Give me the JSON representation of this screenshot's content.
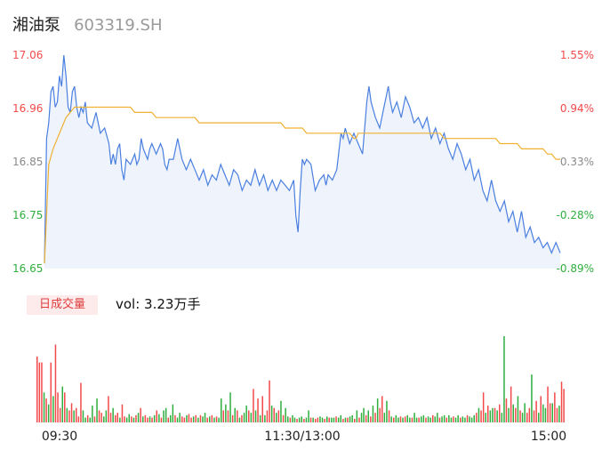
{
  "header": {
    "name": "湘油泵",
    "code": "603319.SH"
  },
  "volume": {
    "badge": "日成交量",
    "text": "vol: 3.23万手"
  },
  "colors": {
    "up": "#f24a4a",
    "down": "#2fae3e",
    "price": "#4a7fe0",
    "avg": "#f0b030",
    "fill": "#eef3fc",
    "neutral": "#8a8a8a"
  },
  "chart_data": {
    "type": "line",
    "y_price_ticks": [
      "17.06",
      "16.96",
      "16.85",
      "16.75",
      "16.65"
    ],
    "y_pct_ticks": [
      "1.55%",
      "0.94%",
      "0.33%",
      "-0.28%",
      "-0.89%"
    ],
    "ylim": [
      16.65,
      17.06
    ],
    "x_tick_labels": [
      "09:30",
      "11:30/13:00",
      "15:00"
    ],
    "x_range": [
      0,
      240
    ],
    "price": [
      [
        0,
        16.66
      ],
      [
        1,
        16.9
      ],
      [
        2,
        16.93
      ],
      [
        3,
        16.99
      ],
      [
        4,
        17.0
      ],
      [
        5,
        16.96
      ],
      [
        6,
        16.97
      ],
      [
        7,
        17.02
      ],
      [
        8,
        17.0
      ],
      [
        9,
        17.06
      ],
      [
        10,
        17.02
      ],
      [
        11,
        16.96
      ],
      [
        12,
        16.95
      ],
      [
        13,
        16.99
      ],
      [
        14,
        17.0
      ],
      [
        15,
        16.96
      ],
      [
        16,
        16.94
      ],
      [
        17,
        16.96
      ],
      [
        18,
        16.95
      ],
      [
        19,
        16.97
      ],
      [
        20,
        16.93
      ],
      [
        22,
        16.92
      ],
      [
        24,
        16.95
      ],
      [
        25,
        16.93
      ],
      [
        26,
        16.91
      ],
      [
        28,
        16.92
      ],
      [
        30,
        16.89
      ],
      [
        31,
        16.85
      ],
      [
        32,
        16.87
      ],
      [
        33,
        16.85
      ],
      [
        34,
        16.88
      ],
      [
        35,
        16.89
      ],
      [
        36,
        16.84
      ],
      [
        37,
        16.82
      ],
      [
        38,
        16.86
      ],
      [
        40,
        16.85
      ],
      [
        42,
        16.87
      ],
      [
        43,
        16.85
      ],
      [
        44,
        16.86
      ],
      [
        45,
        16.9
      ],
      [
        46,
        16.88
      ],
      [
        48,
        16.86
      ],
      [
        49,
        16.88
      ],
      [
        50,
        16.89
      ],
      [
        52,
        16.87
      ],
      [
        54,
        16.89
      ],
      [
        55,
        16.88
      ],
      [
        56,
        16.85
      ],
      [
        57,
        16.84
      ],
      [
        58,
        16.86
      ],
      [
        60,
        16.86
      ],
      [
        62,
        16.9
      ],
      [
        64,
        16.86
      ],
      [
        66,
        16.84
      ],
      [
        68,
        16.86
      ],
      [
        70,
        16.84
      ],
      [
        72,
        16.82
      ],
      [
        74,
        16.84
      ],
      [
        76,
        16.81
      ],
      [
        78,
        16.83
      ],
      [
        80,
        16.82
      ],
      [
        82,
        16.85
      ],
      [
        84,
        16.83
      ],
      [
        86,
        16.81
      ],
      [
        88,
        16.84
      ],
      [
        90,
        16.83
      ],
      [
        92,
        16.8
      ],
      [
        94,
        16.82
      ],
      [
        96,
        16.81
      ],
      [
        98,
        16.84
      ],
      [
        100,
        16.81
      ],
      [
        102,
        16.83
      ],
      [
        104,
        16.8
      ],
      [
        106,
        16.82
      ],
      [
        108,
        16.8
      ],
      [
        110,
        16.82
      ],
      [
        112,
        16.81
      ],
      [
        114,
        16.8
      ],
      [
        116,
        16.82
      ],
      [
        117,
        16.75
      ],
      [
        118,
        16.72
      ],
      [
        119,
        16.8
      ],
      [
        120,
        16.86
      ],
      [
        121,
        16.85
      ],
      [
        122,
        16.86
      ],
      [
        124,
        16.85
      ],
      [
        126,
        16.8
      ],
      [
        128,
        16.82
      ],
      [
        130,
        16.83
      ],
      [
        131,
        16.81
      ],
      [
        132,
        16.83
      ],
      [
        134,
        16.82
      ],
      [
        136,
        16.84
      ],
      [
        138,
        16.91
      ],
      [
        139,
        16.9
      ],
      [
        140,
        16.92
      ],
      [
        142,
        16.89
      ],
      [
        144,
        16.91
      ],
      [
        146,
        16.89
      ],
      [
        148,
        16.87
      ],
      [
        150,
        16.97
      ],
      [
        151,
        17.0
      ],
      [
        152,
        16.97
      ],
      [
        154,
        16.94
      ],
      [
        156,
        16.92
      ],
      [
        158,
        16.96
      ],
      [
        160,
        17.0
      ],
      [
        161,
        16.97
      ],
      [
        162,
        16.95
      ],
      [
        164,
        16.97
      ],
      [
        166,
        16.94
      ],
      [
        168,
        16.98
      ],
      [
        170,
        16.96
      ],
      [
        172,
        16.93
      ],
      [
        174,
        16.94
      ],
      [
        176,
        16.92
      ],
      [
        178,
        16.94
      ],
      [
        180,
        16.9
      ],
      [
        182,
        16.92
      ],
      [
        184,
        16.89
      ],
      [
        186,
        16.91
      ],
      [
        188,
        16.88
      ],
      [
        190,
        16.86
      ],
      [
        192,
        16.89
      ],
      [
        194,
        16.87
      ],
      [
        196,
        16.84
      ],
      [
        198,
        16.86
      ],
      [
        200,
        16.82
      ],
      [
        202,
        16.84
      ],
      [
        204,
        16.8
      ],
      [
        206,
        16.78
      ],
      [
        208,
        16.82
      ],
      [
        210,
        16.78
      ],
      [
        212,
        16.76
      ],
      [
        214,
        16.78
      ],
      [
        216,
        16.74
      ],
      [
        218,
        16.76
      ],
      [
        220,
        16.72
      ],
      [
        222,
        16.76
      ],
      [
        224,
        16.71
      ],
      [
        226,
        16.73
      ],
      [
        228,
        16.7
      ],
      [
        230,
        16.71
      ],
      [
        232,
        16.69
      ],
      [
        234,
        16.7
      ],
      [
        236,
        16.68
      ],
      [
        238,
        16.7
      ],
      [
        240,
        16.68
      ]
    ],
    "avg": [
      [
        0,
        16.66
      ],
      [
        2,
        16.85
      ],
      [
        4,
        16.88
      ],
      [
        6,
        16.9
      ],
      [
        8,
        16.92
      ],
      [
        10,
        16.94
      ],
      [
        12,
        16.95
      ],
      [
        14,
        16.96
      ],
      [
        40,
        16.96
      ],
      [
        42,
        16.95
      ],
      [
        50,
        16.95
      ],
      [
        52,
        16.94
      ],
      [
        70,
        16.94
      ],
      [
        72,
        16.93
      ],
      [
        110,
        16.93
      ],
      [
        112,
        16.92
      ],
      [
        120,
        16.92
      ],
      [
        122,
        16.91
      ],
      [
        142,
        16.91
      ],
      [
        144,
        16.9
      ],
      [
        145,
        16.9
      ],
      [
        146,
        16.91
      ],
      [
        184,
        16.91
      ],
      [
        186,
        16.9
      ],
      [
        210,
        16.9
      ],
      [
        212,
        16.89
      ],
      [
        220,
        16.89
      ],
      [
        222,
        16.88
      ],
      [
        232,
        16.88
      ],
      [
        234,
        16.87
      ],
      [
        236,
        16.87
      ],
      [
        238,
        16.86
      ],
      [
        240,
        16.86
      ]
    ],
    "volume_bars": [
      [
        0.55,
        "up"
      ],
      [
        0.5,
        "up"
      ],
      [
        0.5,
        "up"
      ],
      [
        0.25,
        "down"
      ],
      [
        0.2,
        "up"
      ],
      [
        0.15,
        "down"
      ],
      [
        0.5,
        "up"
      ],
      [
        0.22,
        "down"
      ],
      [
        0.65,
        "up"
      ],
      [
        0.25,
        "up"
      ],
      [
        0.12,
        "up"
      ],
      [
        0.3,
        "down"
      ],
      [
        0.25,
        "up"
      ],
      [
        0.12,
        "down"
      ],
      [
        0.1,
        "up"
      ],
      [
        0.16,
        "up"
      ],
      [
        0.1,
        "down"
      ],
      [
        0.12,
        "up"
      ],
      [
        0.05,
        "up"
      ],
      [
        0.33,
        "up"
      ],
      [
        0.1,
        "down"
      ],
      [
        0.04,
        "down"
      ],
      [
        0.06,
        "up"
      ],
      [
        0.04,
        "down"
      ],
      [
        0.14,
        "down"
      ],
      [
        0.05,
        "up"
      ],
      [
        0.2,
        "down"
      ],
      [
        0.1,
        "up"
      ],
      [
        0.08,
        "up"
      ],
      [
        0.05,
        "down"
      ],
      [
        0.1,
        "down"
      ],
      [
        0.22,
        "up"
      ],
      [
        0.08,
        "up"
      ],
      [
        0.12,
        "down"
      ],
      [
        0.06,
        "up"
      ],
      [
        0.08,
        "up"
      ],
      [
        0.04,
        "down"
      ],
      [
        0.15,
        "up"
      ],
      [
        0.05,
        "up"
      ],
      [
        0.04,
        "down"
      ],
      [
        0.07,
        "down"
      ],
      [
        0.05,
        "up"
      ],
      [
        0.04,
        "down"
      ],
      [
        0.06,
        "up"
      ],
      [
        0.08,
        "down"
      ],
      [
        0.12,
        "up"
      ],
      [
        0.05,
        "down"
      ],
      [
        0.06,
        "up"
      ],
      [
        0.04,
        "up"
      ],
      [
        0.05,
        "down"
      ],
      [
        0.04,
        "up"
      ],
      [
        0.06,
        "down"
      ],
      [
        0.1,
        "up"
      ],
      [
        0.07,
        "down"
      ],
      [
        0.04,
        "up"
      ],
      [
        0.1,
        "down"
      ],
      [
        0.12,
        "down"
      ],
      [
        0.04,
        "up"
      ],
      [
        0.06,
        "down"
      ],
      [
        0.15,
        "down"
      ],
      [
        0.06,
        "up"
      ],
      [
        0.04,
        "down"
      ],
      [
        0.08,
        "down"
      ],
      [
        0.05,
        "up"
      ],
      [
        0.04,
        "up"
      ],
      [
        0.06,
        "down"
      ],
      [
        0.07,
        "up"
      ],
      [
        0.04,
        "up"
      ],
      [
        0.05,
        "down"
      ],
      [
        0.06,
        "up"
      ],
      [
        0.04,
        "down"
      ],
      [
        0.06,
        "up"
      ],
      [
        0.05,
        "down"
      ],
      [
        0.08,
        "down"
      ],
      [
        0.04,
        "up"
      ],
      [
        0.05,
        "down"
      ],
      [
        0.06,
        "up"
      ],
      [
        0.04,
        "down"
      ],
      [
        0.05,
        "up"
      ],
      [
        0.04,
        "down"
      ],
      [
        0.2,
        "down"
      ],
      [
        0.1,
        "up"
      ],
      [
        0.15,
        "down"
      ],
      [
        0.1,
        "up"
      ],
      [
        0.25,
        "down"
      ],
      [
        0.06,
        "up"
      ],
      [
        0.12,
        "down"
      ],
      [
        0.1,
        "up"
      ],
      [
        0.04,
        "down"
      ],
      [
        0.06,
        "up"
      ],
      [
        0.08,
        "down"
      ],
      [
        0.14,
        "down"
      ],
      [
        0.1,
        "up"
      ],
      [
        0.08,
        "down"
      ],
      [
        0.28,
        "up"
      ],
      [
        0.1,
        "down"
      ],
      [
        0.2,
        "up"
      ],
      [
        0.06,
        "down"
      ],
      [
        0.22,
        "up"
      ],
      [
        0.06,
        "down"
      ],
      [
        0.1,
        "up"
      ],
      [
        0.35,
        "up"
      ],
      [
        0.14,
        "down"
      ],
      [
        0.12,
        "up"
      ],
      [
        0.08,
        "down"
      ],
      [
        0.1,
        "up"
      ],
      [
        0.18,
        "down"
      ],
      [
        0.06,
        "up"
      ],
      [
        0.12,
        "down"
      ],
      [
        0.05,
        "down"
      ],
      [
        0.04,
        "up"
      ],
      [
        0.06,
        "down"
      ],
      [
        0.04,
        "down"
      ],
      [
        0.03,
        "up"
      ],
      [
        0.04,
        "down"
      ],
      [
        0.05,
        "down"
      ],
      [
        0.03,
        "up"
      ],
      [
        0.04,
        "down"
      ],
      [
        0.1,
        "down"
      ],
      [
        0.04,
        "up"
      ],
      [
        0.04,
        "down"
      ],
      [
        0.03,
        "up"
      ],
      [
        0.04,
        "up"
      ],
      [
        0.05,
        "down"
      ],
      [
        0.04,
        "down"
      ],
      [
        0.03,
        "up"
      ],
      [
        0.05,
        "down"
      ],
      [
        0.04,
        "up"
      ],
      [
        0.04,
        "down"
      ],
      [
        0.04,
        "down"
      ],
      [
        0.05,
        "up"
      ],
      [
        0.04,
        "down"
      ],
      [
        0.06,
        "down"
      ],
      [
        0.03,
        "up"
      ],
      [
        0.04,
        "down"
      ],
      [
        0.04,
        "up"
      ],
      [
        0.05,
        "down"
      ],
      [
        0.06,
        "down"
      ],
      [
        0.03,
        "up"
      ],
      [
        0.1,
        "down"
      ],
      [
        0.04,
        "up"
      ],
      [
        0.08,
        "down"
      ],
      [
        0.12,
        "down"
      ],
      [
        0.06,
        "up"
      ],
      [
        0.1,
        "down"
      ],
      [
        0.05,
        "up"
      ],
      [
        0.14,
        "down"
      ],
      [
        0.08,
        "up"
      ],
      [
        0.2,
        "down"
      ],
      [
        0.12,
        "up"
      ],
      [
        0.22,
        "up"
      ],
      [
        0.08,
        "down"
      ],
      [
        0.18,
        "down"
      ],
      [
        0.1,
        "up"
      ],
      [
        0.05,
        "down"
      ],
      [
        0.04,
        "up"
      ],
      [
        0.06,
        "down"
      ],
      [
        0.04,
        "down"
      ],
      [
        0.05,
        "up"
      ],
      [
        0.04,
        "down"
      ],
      [
        0.05,
        "up"
      ],
      [
        0.06,
        "down"
      ],
      [
        0.04,
        "down"
      ],
      [
        0.04,
        "up"
      ],
      [
        0.08,
        "down"
      ],
      [
        0.04,
        "down"
      ],
      [
        0.04,
        "up"
      ],
      [
        0.05,
        "down"
      ],
      [
        0.06,
        "down"
      ],
      [
        0.04,
        "up"
      ],
      [
        0.05,
        "down"
      ],
      [
        0.04,
        "down"
      ],
      [
        0.06,
        "up"
      ],
      [
        0.05,
        "down"
      ],
      [
        0.08,
        "down"
      ],
      [
        0.04,
        "up"
      ],
      [
        0.05,
        "down"
      ],
      [
        0.06,
        "down"
      ],
      [
        0.04,
        "up"
      ],
      [
        0.06,
        "down"
      ],
      [
        0.04,
        "down"
      ],
      [
        0.05,
        "up"
      ],
      [
        0.04,
        "down"
      ],
      [
        0.06,
        "down"
      ],
      [
        0.04,
        "up"
      ],
      [
        0.05,
        "down"
      ],
      [
        0.04,
        "down"
      ],
      [
        0.06,
        "up"
      ],
      [
        0.05,
        "down"
      ],
      [
        0.04,
        "down"
      ],
      [
        0.06,
        "down"
      ],
      [
        0.08,
        "up"
      ],
      [
        0.12,
        "down"
      ],
      [
        0.1,
        "up"
      ],
      [
        0.25,
        "up"
      ],
      [
        0.08,
        "down"
      ],
      [
        0.14,
        "up"
      ],
      [
        0.1,
        "down"
      ],
      [
        0.12,
        "down"
      ],
      [
        0.12,
        "up"
      ],
      [
        0.1,
        "down"
      ],
      [
        0.15,
        "up"
      ],
      [
        0.08,
        "down"
      ],
      [
        0.72,
        "down"
      ],
      [
        0.2,
        "up"
      ],
      [
        0.12,
        "down"
      ],
      [
        0.3,
        "up"
      ],
      [
        0.15,
        "down"
      ],
      [
        0.12,
        "up"
      ],
      [
        0.22,
        "down"
      ],
      [
        0.1,
        "up"
      ],
      [
        0.08,
        "down"
      ],
      [
        0.16,
        "down"
      ],
      [
        0.08,
        "up"
      ],
      [
        0.12,
        "up"
      ],
      [
        0.4,
        "down"
      ],
      [
        0.1,
        "up"
      ],
      [
        0.18,
        "up"
      ],
      [
        0.08,
        "down"
      ],
      [
        0.22,
        "up"
      ],
      [
        0.15,
        "down"
      ],
      [
        0.12,
        "down"
      ],
      [
        0.3,
        "up"
      ],
      [
        0.16,
        "up"
      ],
      [
        0.16,
        "down"
      ],
      [
        0.25,
        "up"
      ],
      [
        0.12,
        "up"
      ],
      [
        0.14,
        "down"
      ],
      [
        0.34,
        "up"
      ],
      [
        0.28,
        "up"
      ]
    ]
  }
}
